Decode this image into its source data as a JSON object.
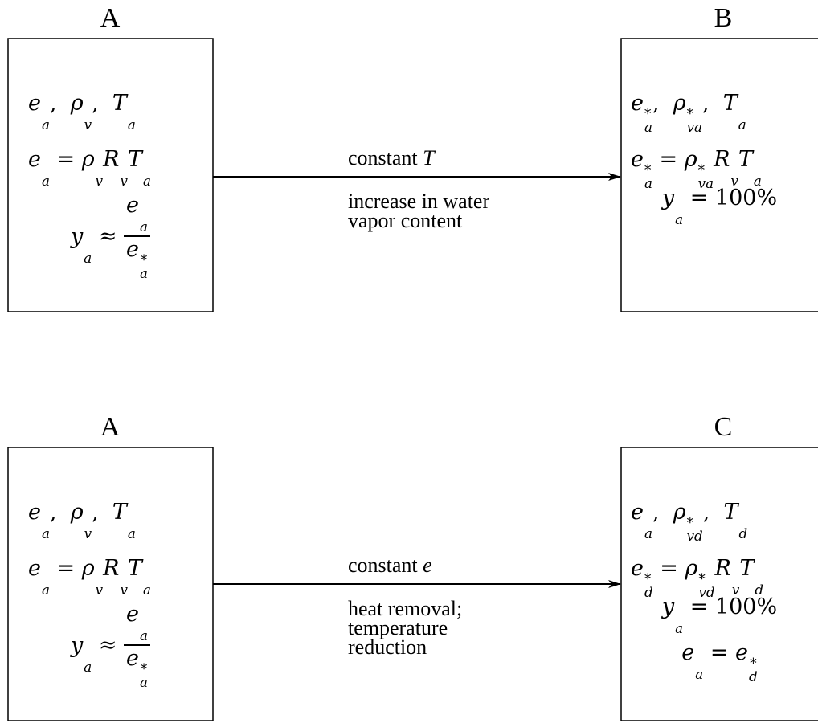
{
  "panels": [
    {
      "from": {
        "label": "A",
        "lines": [
          [
            {
              "b": "e",
              "sub": "a"
            },
            ",  ",
            {
              "b": "ρ",
              "sub": "v"
            },
            ",  ",
            {
              "b": "T",
              "sub": "a"
            }
          ],
          [
            {
              "b": "e",
              "sub": "a"
            },
            " = ",
            {
              "b": "ρ",
              "sub": "v"
            },
            {
              "b": "R",
              "sub": "v"
            },
            {
              "b": "T",
              "sub": "a"
            }
          ],
          [
            {
              "b": "y",
              "sub": "a"
            },
            " ≈ ",
            {
              "num": [
                {
                  "b": "e",
                  "sub": "a"
                }
              ],
              "den": [
                {
                  "b": "e",
                  "sub": "a",
                  "sup": "*"
                }
              ]
            }
          ]
        ]
      },
      "to": {
        "label": "B",
        "lines": [
          [
            {
              "b": "e",
              "sub": "a",
              "sup": "*"
            },
            ",  ",
            {
              "b": "ρ",
              "sub": "va",
              "sup": "*"
            },
            ",  ",
            {
              "b": "T",
              "sub": "a"
            }
          ],
          [
            {
              "b": "e",
              "sub": "a",
              "sup": "*"
            },
            " = ",
            {
              "b": "ρ",
              "sub": "va",
              "sup": "*"
            },
            {
              "b": "R",
              "sub": "v"
            },
            {
              "b": "T",
              "sub": "a"
            }
          ],
          [
            {
              "b": "y",
              "sub": "a"
            },
            " = 100%"
          ]
        ]
      },
      "arrow": {
        "condition": [
          "constant ",
          {
            "b": "T"
          }
        ],
        "description": [
          "increase in water",
          "vapor content"
        ]
      }
    },
    {
      "from": {
        "label": "A",
        "lines": [
          [
            {
              "b": "e",
              "sub": "a"
            },
            ",  ",
            {
              "b": "ρ",
              "sub": "v"
            },
            ",  ",
            {
              "b": "T",
              "sub": "a"
            }
          ],
          [
            {
              "b": "e",
              "sub": "a"
            },
            " = ",
            {
              "b": "ρ",
              "sub": "v"
            },
            {
              "b": "R",
              "sub": "v"
            },
            {
              "b": "T",
              "sub": "a"
            }
          ],
          [
            {
              "b": "y",
              "sub": "a"
            },
            " ≈ ",
            {
              "num": [
                {
                  "b": "e",
                  "sub": "a"
                }
              ],
              "den": [
                {
                  "b": "e",
                  "sub": "a",
                  "sup": "*"
                }
              ]
            }
          ]
        ]
      },
      "to": {
        "label": "C",
        "lines": [
          [
            {
              "b": "e",
              "sub": "a"
            },
            ",  ",
            {
              "b": "ρ",
              "sub": "vd",
              "sup": "*"
            },
            ",  ",
            {
              "b": "T",
              "sub": "d"
            }
          ],
          [
            {
              "b": "e",
              "sub": "d",
              "sup": "*"
            },
            " = ",
            {
              "b": "ρ",
              "sub": "vd",
              "sup": "*"
            },
            {
              "b": "R",
              "sub": "v"
            },
            {
              "b": "T",
              "sub": "d"
            }
          ],
          [
            {
              "b": "y",
              "sub": "a"
            },
            " = 100%"
          ],
          [
            {
              "b": "e",
              "sub": "a"
            },
            " = ",
            {
              "b": "e",
              "sub": "d",
              "sup": "*"
            }
          ]
        ]
      },
      "arrow": {
        "condition": [
          "constant ",
          {
            "b": "e"
          }
        ],
        "description": [
          "heat removal;",
          "temperature",
          "reduction"
        ]
      }
    }
  ]
}
